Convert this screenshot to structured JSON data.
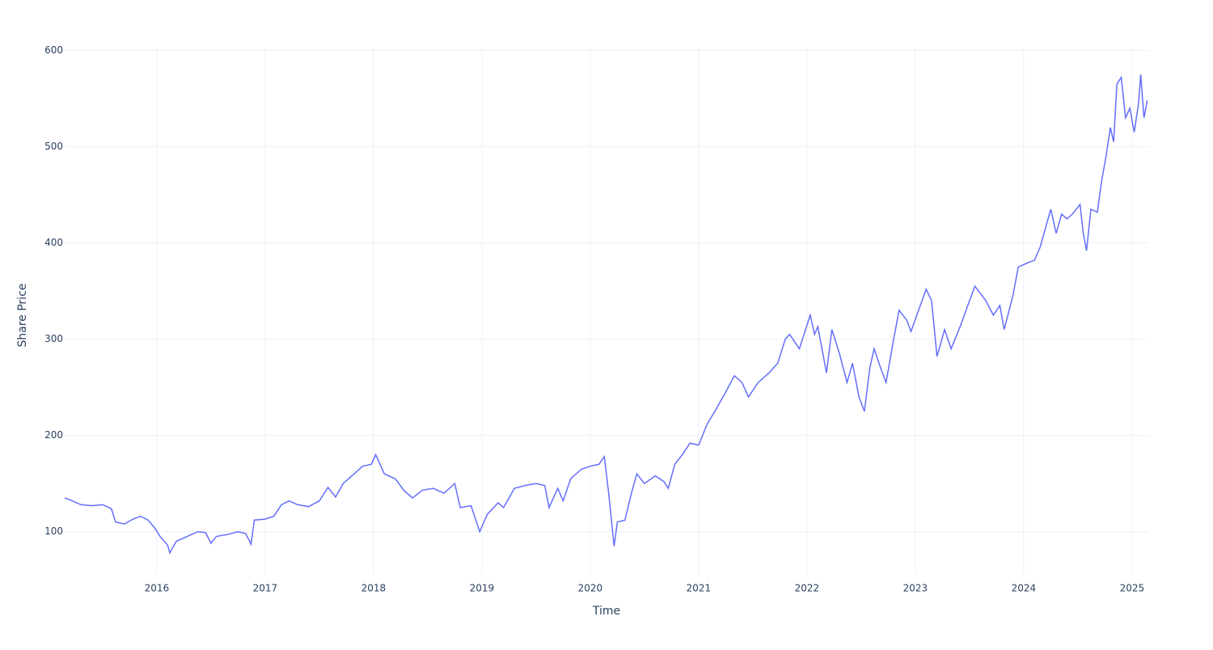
{
  "chart_data": {
    "type": "line",
    "x_label": "Time",
    "y_label": "Share Price",
    "xlim": [
      2015.15,
      2025.15
    ],
    "xticks": [
      2016,
      2017,
      2018,
      2019,
      2020,
      2021,
      2022,
      2023,
      2024,
      2025
    ],
    "ylim": [
      56,
      602
    ],
    "yticks": [
      100,
      200,
      300,
      400,
      500,
      600
    ],
    "grid": true,
    "x": [
      2015.15,
      2015.2,
      2015.3,
      2015.4,
      2015.5,
      2015.58,
      2015.62,
      2015.7,
      2015.78,
      2015.85,
      2015.92,
      2015.98,
      2016.03,
      2016.1,
      2016.12,
      2016.18,
      2016.28,
      2016.38,
      2016.45,
      2016.5,
      2016.55,
      2016.65,
      2016.75,
      2016.82,
      2016.87,
      2016.9,
      2017.0,
      2017.08,
      2017.15,
      2017.22,
      2017.3,
      2017.4,
      2017.5,
      2017.58,
      2017.65,
      2017.72,
      2017.82,
      2017.9,
      2017.98,
      2018.02,
      2018.1,
      2018.2,
      2018.28,
      2018.36,
      2018.45,
      2018.55,
      2018.65,
      2018.75,
      2018.8,
      2018.9,
      2018.98,
      2019.05,
      2019.15,
      2019.2,
      2019.3,
      2019.4,
      2019.5,
      2019.58,
      2019.62,
      2019.7,
      2019.75,
      2019.82,
      2019.92,
      2020.0,
      2020.08,
      2020.13,
      2020.17,
      2020.22,
      2020.25,
      2020.32,
      2020.38,
      2020.43,
      2020.5,
      2020.6,
      2020.68,
      2020.72,
      2020.78,
      2020.85,
      2020.92,
      2021.0,
      2021.08,
      2021.15,
      2021.25,
      2021.33,
      2021.4,
      2021.46,
      2021.55,
      2021.65,
      2021.73,
      2021.8,
      2021.84,
      2021.93,
      2022.03,
      2022.07,
      2022.1,
      2022.18,
      2022.23,
      2022.3,
      2022.37,
      2022.42,
      2022.48,
      2022.53,
      2022.58,
      2022.62,
      2022.68,
      2022.73,
      2022.8,
      2022.85,
      2022.92,
      2022.96,
      2023.03,
      2023.1,
      2023.15,
      2023.2,
      2023.27,
      2023.33,
      2023.42,
      2023.5,
      2023.55,
      2023.65,
      2023.72,
      2023.78,
      2023.82,
      2023.9,
      2023.95,
      2024.05,
      2024.1,
      2024.15,
      2024.2,
      2024.25,
      2024.3,
      2024.35,
      2024.4,
      2024.45,
      2024.52,
      2024.55,
      2024.58,
      2024.62,
      2024.68,
      2024.72,
      2024.76,
      2024.8,
      2024.83,
      2024.86,
      2024.9,
      2024.94,
      2024.98,
      2025.02,
      2025.06,
      2025.08,
      2025.11,
      2025.14
    ],
    "series": [
      {
        "color": "#636efa",
        "values": [
          135,
          133,
          128,
          127,
          128,
          124,
          110,
          108,
          113,
          116,
          112,
          104,
          95,
          86,
          78,
          90,
          95,
          100,
          99,
          88,
          95,
          97,
          100,
          98,
          87,
          112,
          113,
          116,
          128,
          132,
          128,
          126,
          132,
          146,
          136,
          150,
          160,
          168,
          170,
          180,
          160,
          155,
          143,
          135,
          143,
          145,
          140,
          150,
          125,
          127,
          100,
          118,
          130,
          125,
          145,
          148,
          150,
          148,
          125,
          145,
          132,
          155,
          165,
          168,
          170,
          178,
          140,
          85,
          110,
          112,
          140,
          160,
          150,
          158,
          152,
          145,
          170,
          180,
          192,
          190,
          212,
          225,
          245,
          262,
          255,
          240,
          255,
          265,
          275,
          300,
          305,
          290,
          325,
          305,
          313,
          265,
          310,
          285,
          255,
          275,
          240,
          225,
          270,
          290,
          270,
          255,
          300,
          330,
          320,
          308,
          330,
          352,
          340,
          282,
          310,
          290,
          315,
          340,
          355,
          340,
          325,
          335,
          310,
          345,
          375,
          380,
          382,
          395,
          415,
          435,
          410,
          430,
          425,
          430,
          440,
          410,
          392,
          435,
          432,
          465,
          490,
          520,
          505,
          565,
          572,
          530,
          540,
          515,
          545,
          575,
          530,
          548
        ]
      }
    ]
  }
}
